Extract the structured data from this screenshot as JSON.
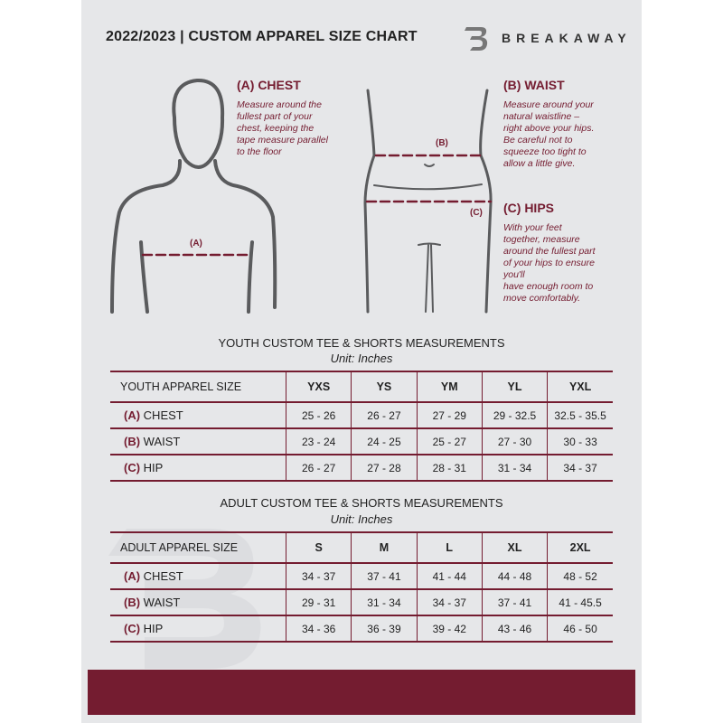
{
  "header": {
    "title": "2022/2023  |  CUSTOM APPAREL SIZE CHART",
    "brand": "BREAKAWAY",
    "logo_letter": "B"
  },
  "colors": {
    "accent": "#741c30",
    "background": "#e6e7e9",
    "figure": "#5a5b5d"
  },
  "guides": {
    "chest": {
      "heading": "(A) CHEST",
      "marker": "(A)",
      "text": [
        "Measure around the",
        "fullest part of your",
        "chest, keeping the",
        "tape measure parallel",
        "to the floor"
      ]
    },
    "waist": {
      "heading": "(B) WAIST",
      "marker": "(B)",
      "text": [
        "Measure around your",
        "natural waistline –",
        "right above your hips.",
        "Be careful not to",
        "squeeze too tight to",
        "allow a little give."
      ]
    },
    "hips": {
      "heading": "(C) HIPS",
      "marker": "(C)",
      "text": [
        "With your feet",
        "together, measure",
        "around the fullest part",
        "of your hips to ensure",
        "you'll",
        "have enough room to",
        "move comfortably."
      ]
    }
  },
  "youth": {
    "title": "YOUTH CUSTOM TEE & SHORTS MEASUREMENTS",
    "unit": "Unit: Inches",
    "size_label": "YOUTH APPAREL SIZE",
    "sizes": [
      "YXS",
      "YS",
      "YM",
      "YL",
      "YXL"
    ],
    "rows": [
      {
        "code": "(A)",
        "name": "CHEST",
        "values": [
          "25 - 26",
          "26 - 27",
          "27 - 29",
          "29 - 32.5",
          "32.5 - 35.5"
        ]
      },
      {
        "code": "(B)",
        "name": "WAIST",
        "values": [
          "23 - 24",
          "24 - 25",
          "25 - 27",
          "27 - 30",
          "30 - 33"
        ]
      },
      {
        "code": "(C)",
        "name": "HIP",
        "values": [
          "26 - 27",
          "27 - 28",
          "28 - 31",
          "31 - 34",
          "34 - 37"
        ]
      }
    ]
  },
  "adult": {
    "title": "ADULT CUSTOM TEE & SHORTS MEASUREMENTS",
    "unit": "Unit: Inches",
    "size_label": "ADULT APPAREL SIZE",
    "sizes": [
      "S",
      "M",
      "L",
      "XL",
      "2XL"
    ],
    "rows": [
      {
        "code": "(A)",
        "name": "CHEST",
        "values": [
          "34 - 37",
          "37 - 41",
          "41 - 44",
          "44 - 48",
          "48 - 52"
        ]
      },
      {
        "code": "(B)",
        "name": "WAIST",
        "values": [
          "29 - 31",
          "31 - 34",
          "34 - 37",
          "37 - 41",
          "41 - 45.5"
        ]
      },
      {
        "code": "(C)",
        "name": "HIP",
        "values": [
          "34 - 36",
          "36 - 39",
          "39 - 42",
          "43 - 46",
          "46 - 50"
        ]
      }
    ]
  }
}
